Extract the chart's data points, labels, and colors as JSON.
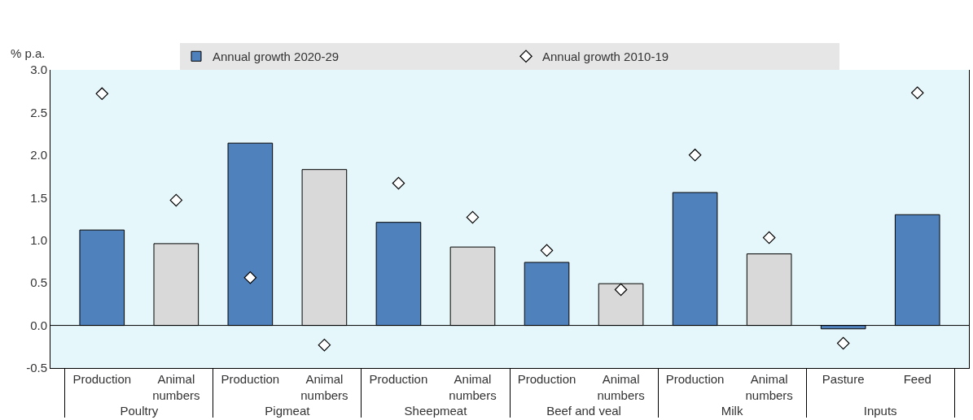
{
  "chart_data": {
    "type": "bar",
    "ylabel": "% p.a.",
    "categories": [
      "Production",
      "Animal numbers",
      "Production",
      "Animal numbers",
      "Production",
      "Animal numbers",
      "Production",
      "Animal numbers",
      "Production",
      "Animal numbers",
      "Pasture",
      "Feed"
    ],
    "annotations": [
      "Poultry",
      "Pigmeat",
      "Sheepmeat",
      "Beef and veal",
      "Milk",
      "Inputs"
    ],
    "series": [
      {
        "name": "Annual growth 2020-29",
        "values": [
          1.12,
          0.96,
          2.14,
          1.83,
          1.21,
          0.92,
          0.74,
          0.49,
          1.56,
          0.84,
          -0.04,
          1.3
        ],
        "colors": [
          "#4f81bd",
          "#d9d9d9",
          "#4f81bd",
          "#d9d9d9",
          "#4f81bd",
          "#d9d9d9",
          "#4f81bd",
          "#d9d9d9",
          "#4f81bd",
          "#d9d9d9",
          "#4f81bd",
          "#4f81bd"
        ]
      },
      {
        "name": "Annual growth 2010-19",
        "type": "scatter",
        "color": "#000000",
        "marker": "diamond",
        "values": [
          2.72,
          1.47,
          0.56,
          -0.23,
          1.67,
          1.27,
          0.88,
          0.42,
          2.0,
          1.03,
          -0.21,
          2.73
        ]
      }
    ],
    "ylim": [
      -0.5,
      3.0
    ],
    "yticks": [
      {
        "value": -0.5,
        "label": "-0.5"
      },
      {
        "value": 0,
        "label": "0.0"
      },
      {
        "value": 0.5,
        "label": "0.5"
      },
      {
        "value": 1,
        "label": "1.0"
      },
      {
        "value": 1.5,
        "label": "1.5"
      },
      {
        "value": 2,
        "label": "2.0"
      },
      {
        "value": 2.5,
        "label": "2.5"
      },
      {
        "value": 3,
        "label": "3.0"
      }
    ],
    "ref_lines": [
      {
        "axis": "y",
        "value": 0,
        "color": "#000000"
      }
    ],
    "grid": false,
    "legend": "top"
  }
}
